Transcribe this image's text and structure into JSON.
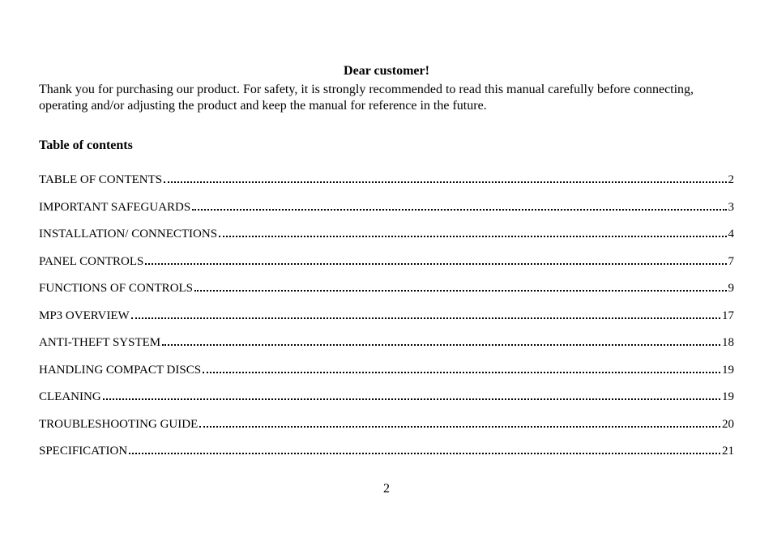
{
  "greeting": "Dear customer!",
  "intro": "Thank you for purchasing our product. For safety, it is strongly recommended to read this manual carefully before connecting, operating and/or adjusting the product and keep the manual for reference in the future.",
  "toc_heading": "Table of contents",
  "toc": [
    {
      "title": "TABLE OF CONTENTS",
      "page": "2"
    },
    {
      "title": "IMPORTANT SAFEGUARDS",
      "page": "3"
    },
    {
      "title": "INSTALLATION/ CONNECTIONS",
      "page": "4"
    },
    {
      "title": "PANEL CONTROLS",
      "page": "7"
    },
    {
      "title": "FUNCTIONS OF CONTROLS",
      "page": "9"
    },
    {
      "title": "MP3 OVERVIEW",
      "page": "17"
    },
    {
      "title": "ANTI-THEFT SYSTEM",
      "page": "18"
    },
    {
      "title": "HANDLING COMPACT DISCS",
      "page": "19"
    },
    {
      "title": "CLEANING",
      "page": "19"
    },
    {
      "title": "TROUBLESHOOTING GUIDE",
      "page": "20"
    },
    {
      "title": "SPECIFICATION",
      "page": "21"
    }
  ],
  "page_number": "2",
  "colors": {
    "text": "#000000",
    "background": "#ffffff"
  },
  "fonts": {
    "family": "Times New Roman",
    "body_size_pt": 12,
    "toc_size_pt": 11
  }
}
